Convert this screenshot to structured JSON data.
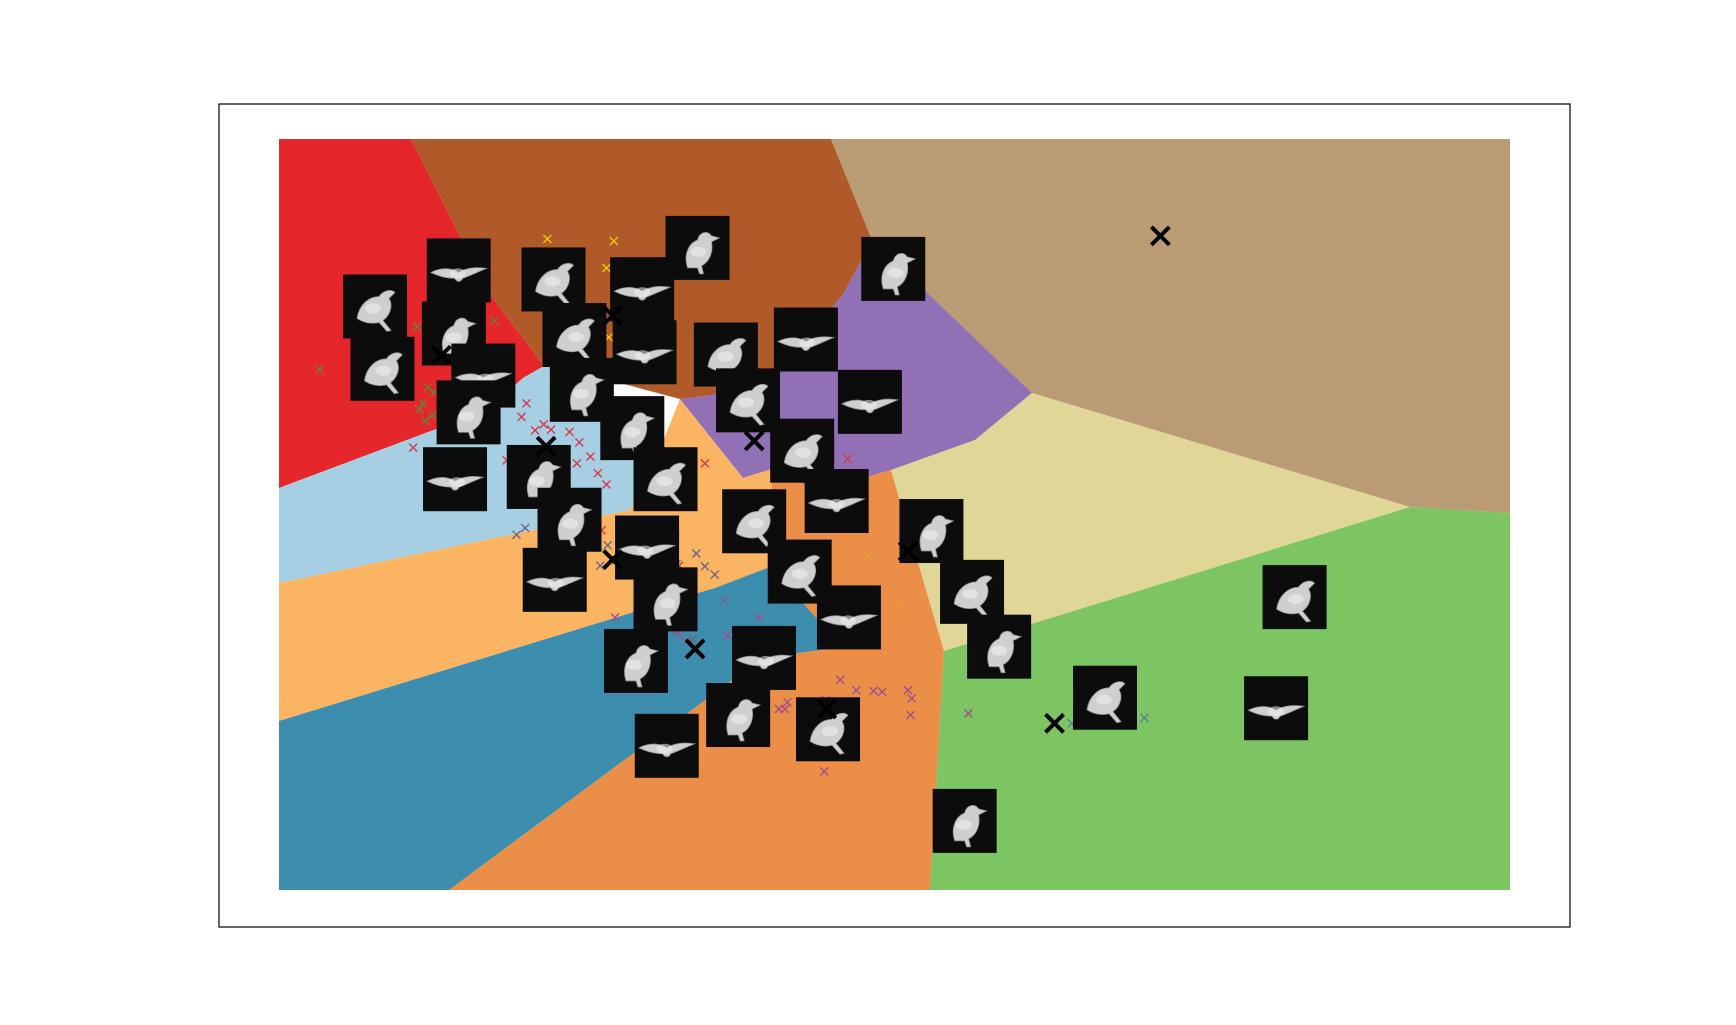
{
  "chart_data": {
    "type": "scatter",
    "title": "",
    "xlabel": "",
    "ylabel": "",
    "xlim": [
      0,
      100
    ],
    "ylim": [
      0,
      100
    ],
    "grid": false,
    "legend": "none",
    "axes_visible": false,
    "regions": [
      {
        "name": "red",
        "color": "#e5272b"
      },
      {
        "name": "brown",
        "color": "#b05a2a"
      },
      {
        "name": "tan",
        "color": "#b99c74"
      },
      {
        "name": "purple",
        "color": "#9270b5"
      },
      {
        "name": "light-blue",
        "color": "#a6cfe3"
      },
      {
        "name": "light-orange",
        "color": "#fbb462"
      },
      {
        "name": "teal",
        "color": "#3c8dae"
      },
      {
        "name": "orange",
        "color": "#ea8e48"
      },
      {
        "name": "khaki",
        "color": "#e0d698"
      },
      {
        "name": "green",
        "color": "#7dc462"
      }
    ],
    "centroids": [
      {
        "x": 13.2,
        "y": 71.2
      },
      {
        "x": 27.1,
        "y": 76.5
      },
      {
        "x": 71.6,
        "y": 87.1
      },
      {
        "x": 38.6,
        "y": 59.8
      },
      {
        "x": 21.7,
        "y": 59.1
      },
      {
        "x": 27.1,
        "y": 44.0
      },
      {
        "x": 33.8,
        "y": 32.1
      },
      {
        "x": 44.5,
        "y": 24.1
      },
      {
        "x": 51.1,
        "y": 45.1
      },
      {
        "x": 63.0,
        "y": 22.2
      }
    ],
    "thumbnails": [
      {
        "x": 7.8,
        "y": 77.7,
        "subject": "grebe"
      },
      {
        "x": 14.6,
        "y": 82.5,
        "subject": "kingfisher"
      },
      {
        "x": 14.2,
        "y": 74.1,
        "subject": "swallow"
      },
      {
        "x": 8.4,
        "y": 69.4,
        "subject": "gull-flight"
      },
      {
        "x": 16.6,
        "y": 68.5,
        "subject": "albatross"
      },
      {
        "x": 15.4,
        "y": 63.6,
        "subject": "albatross-sitting"
      },
      {
        "x": 22.3,
        "y": 81.3,
        "subject": "sparrow"
      },
      {
        "x": 29.5,
        "y": 80.0,
        "subject": "grebe-2"
      },
      {
        "x": 34.0,
        "y": 85.5,
        "subject": "hummingbird"
      },
      {
        "x": 24.0,
        "y": 73.9,
        "subject": "tern-flight"
      },
      {
        "x": 29.7,
        "y": 71.6,
        "subject": "duck"
      },
      {
        "x": 24.6,
        "y": 66.6,
        "subject": "warbler"
      },
      {
        "x": 36.3,
        "y": 71.3,
        "subject": "pigeon"
      },
      {
        "x": 42.8,
        "y": 73.3,
        "subject": "wren"
      },
      {
        "x": 49.9,
        "y": 82.7,
        "subject": "blackbird"
      },
      {
        "x": 38.1,
        "y": 65.2,
        "subject": "thrush"
      },
      {
        "x": 48.0,
        "y": 65.0,
        "subject": "finch"
      },
      {
        "x": 28.7,
        "y": 61.5,
        "subject": "sparrow-2"
      },
      {
        "x": 42.5,
        "y": 58.5,
        "subject": "flycatcher"
      },
      {
        "x": 14.3,
        "y": 54.7,
        "subject": "swallow-2"
      },
      {
        "x": 21.1,
        "y": 55.0,
        "subject": "gull-flight-2"
      },
      {
        "x": 31.4,
        "y": 54.7,
        "subject": "gull-flight-3"
      },
      {
        "x": 45.3,
        "y": 51.8,
        "subject": "hummingbird-2"
      },
      {
        "x": 23.6,
        "y": 49.3,
        "subject": "thrush-2"
      },
      {
        "x": 38.6,
        "y": 49.1,
        "subject": "gull"
      },
      {
        "x": 29.9,
        "y": 45.6,
        "subject": "jay"
      },
      {
        "x": 53.0,
        "y": 47.8,
        "subject": "caracara"
      },
      {
        "x": 42.3,
        "y": 42.4,
        "subject": "pelican"
      },
      {
        "x": 22.4,
        "y": 41.3,
        "subject": "cormorant"
      },
      {
        "x": 31.4,
        "y": 38.7,
        "subject": "puffin"
      },
      {
        "x": 56.3,
        "y": 39.7,
        "subject": "gull-2"
      },
      {
        "x": 46.3,
        "y": 36.3,
        "subject": "tern"
      },
      {
        "x": 58.5,
        "y": 32.4,
        "subject": "gannet"
      },
      {
        "x": 82.5,
        "y": 39.0,
        "subject": "finch-2"
      },
      {
        "x": 39.4,
        "y": 30.9,
        "subject": "parrot"
      },
      {
        "x": 29.0,
        "y": 30.5,
        "subject": "shearwater"
      },
      {
        "x": 67.1,
        "y": 25.6,
        "subject": "gannet-flight"
      },
      {
        "x": 81.0,
        "y": 24.2,
        "subject": "albatross-flight"
      },
      {
        "x": 37.3,
        "y": 23.3,
        "subject": "albatross-flight-2"
      },
      {
        "x": 44.6,
        "y": 21.4,
        "subject": "frigatebird"
      },
      {
        "x": 31.5,
        "y": 19.2,
        "subject": "albatross-flight-3"
      },
      {
        "x": 55.7,
        "y": 9.2,
        "subject": "eagle"
      }
    ],
    "point_clusters": [
      {
        "color": "#f2c70a",
        "x": [
          21.8,
          27.2,
          26.6,
          26.8,
          26.3,
          26.9
        ],
        "y": [
          86.7,
          86.4,
          82.8,
          73.6,
          75.0,
          69.9
        ]
      },
      {
        "color": "#6d7f3c",
        "x": [
          3.3,
          11.2,
          10.2,
          12.1,
          11.7,
          12.6,
          11.4,
          12.5,
          11.9,
          17.5
        ],
        "y": [
          69.3,
          75.0,
          67.4,
          66.9,
          64.8,
          66.3,
          64.0,
          63.2,
          62.5,
          75.8
        ]
      },
      {
        "color": "#d53a4a",
        "x": [
          10.9,
          20.1,
          19.7,
          21.5,
          20.8,
          22.1,
          23.6,
          24.4,
          25.3,
          24.2,
          25.9,
          26.6,
          18.5,
          19.3,
          20.3,
          34.6,
          23.5,
          26.2,
          30.6,
          32.2,
          32.5,
          46.2,
          20.2,
          20.6
        ],
        "y": [
          58.9,
          64.8,
          63.0,
          62.0,
          61.2,
          61.3,
          61.0,
          59.6,
          57.7,
          56.8,
          55.5,
          54.0,
          57.2,
          55.7,
          56.3,
          56.8,
          50.4,
          47.9,
          46.4,
          46.9,
          43.2,
          57.4,
          53.3,
          51.9
        ]
      },
      {
        "color": "#6e6882",
        "x": [
          20.0,
          19.3,
          20.2,
          25.7,
          26.7,
          26.1,
          27.4,
          33.9,
          32.3,
          33.5,
          34.6,
          35.4,
          36.2,
          32.3,
          33.6
        ],
        "y": [
          48.2,
          47.3,
          44.9,
          48.4,
          45.9,
          43.2,
          43.9,
          44.8,
          43.4,
          41.1,
          43.1,
          42.0,
          38.5,
          34.6,
          33.4
        ]
      },
      {
        "color": "#a24f8b",
        "x": [
          27.3,
          32.4,
          33.1,
          36.4,
          40.2,
          41.3,
          41.1,
          44.4,
          45.6,
          46.9,
          48.3,
          49.0,
          51.3,
          51.4,
          51.1,
          56.0,
          40.6,
          43.4,
          44.3,
          39.0
        ],
        "y": [
          36.3,
          34.2,
          33.1,
          33.9,
          34.0,
          25.0,
          24.1,
          25.3,
          28.0,
          26.6,
          26.5,
          26.4,
          23.3,
          25.5,
          26.6,
          23.5,
          24.1,
          22.8,
          15.8,
          36.3
        ]
      },
      {
        "color": "#e59a3b",
        "x": [
          47.9,
          50.3
        ],
        "y": [
          44.4,
          37.7
        ]
      },
      {
        "color": "#5a7d9c",
        "x": [
          64.4,
          70.3
        ],
        "y": [
          22.2,
          22.9
        ]
      }
    ]
  }
}
